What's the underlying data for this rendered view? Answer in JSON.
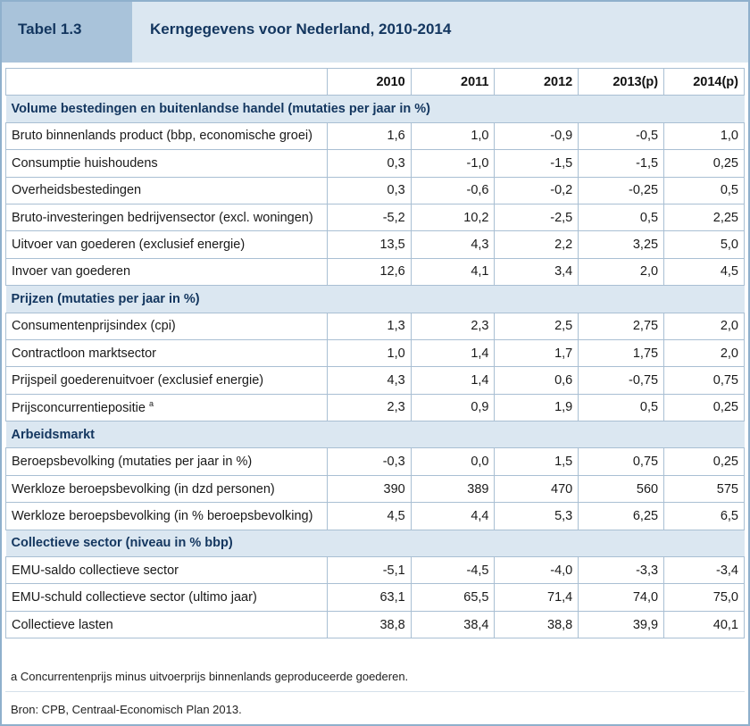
{
  "header": {
    "table_number": "Tabel 1.3",
    "title": "Kerngegevens voor Nederland, 2010-2014"
  },
  "columns": [
    "",
    "2010",
    "2011",
    "2012",
    "2013(p)",
    "2014(p)"
  ],
  "sections": [
    {
      "title": "Volume bestedingen en buitenlandse handel (mutaties per jaar in %)",
      "rows": [
        {
          "label": "Bruto binnenlands product (bbp, economische groei)",
          "values": [
            "1,6",
            "1,0",
            "-0,9",
            "-0,5",
            "1,0"
          ]
        },
        {
          "label": "Consumptie huishoudens",
          "values": [
            "0,3",
            "-1,0",
            "-1,5",
            "-1,5",
            "0,25"
          ]
        },
        {
          "label": "Overheidsbestedingen",
          "values": [
            "0,3",
            "-0,6",
            "-0,2",
            "-0,25",
            "0,5"
          ]
        },
        {
          "label": "Bruto-investeringen bedrijvensector (excl. woningen)",
          "values": [
            "-5,2",
            "10,2",
            "-2,5",
            "0,5",
            "2,25"
          ]
        },
        {
          "label": "Uitvoer van goederen (exclusief energie)",
          "values": [
            "13,5",
            "4,3",
            "2,2",
            "3,25",
            "5,0"
          ]
        },
        {
          "label": "Invoer van goederen",
          "values": [
            "12,6",
            "4,1",
            "3,4",
            "2,0",
            "4,5"
          ]
        }
      ]
    },
    {
      "title": "Prijzen (mutaties per jaar in %)",
      "rows": [
        {
          "label": "Consumentenprijsindex (cpi)",
          "values": [
            "1,3",
            "2,3",
            "2,5",
            "2,75",
            "2,0"
          ]
        },
        {
          "label": "Contractloon marktsector",
          "values": [
            "1,0",
            "1,4",
            "1,7",
            "1,75",
            "2,0"
          ]
        },
        {
          "label": "Prijspeil goederenuitvoer (exclusief energie)",
          "values": [
            "4,3",
            "1,4",
            "0,6",
            "-0,75",
            "0,75"
          ]
        },
        {
          "label": "Prijsconcurrentiepositie",
          "sup": "a",
          "values": [
            "2,3",
            "0,9",
            "1,9",
            "0,5",
            "0,25"
          ]
        }
      ]
    },
    {
      "title": "Arbeidsmarkt",
      "rows": [
        {
          "label": "Beroepsbevolking (mutaties per jaar in %)",
          "values": [
            "-0,3",
            "0,0",
            "1,5",
            "0,75",
            "0,25"
          ]
        },
        {
          "label": "Werkloze beroepsbevolking (in dzd personen)",
          "values": [
            "390",
            "389",
            "470",
            "560",
            "575"
          ]
        },
        {
          "label": "Werkloze beroepsbevolking (in % beroepsbevolking)",
          "values": [
            "4,5",
            "4,4",
            "5,3",
            "6,25",
            "6,5"
          ]
        }
      ]
    },
    {
      "title": "Collectieve sector (niveau in % bbp)",
      "rows": [
        {
          "label": "EMU-saldo collectieve sector",
          "values": [
            "-5,1",
            "-4,5",
            "-4,0",
            "-3,3",
            "-3,4"
          ]
        },
        {
          "label": "EMU-schuld collectieve sector (ultimo jaar)",
          "values": [
            "63,1",
            "65,5",
            "71,4",
            "74,0",
            "75,0"
          ]
        },
        {
          "label": "Collectieve lasten",
          "values": [
            "38,8",
            "38,4",
            "38,8",
            "39,9",
            "40,1"
          ]
        }
      ]
    }
  ],
  "footnote": "a   Concurrentenprijs minus uitvoerprijs binnenlands geproduceerde goederen.",
  "source": "Bron: CPB, Centraal-Economisch Plan 2013.",
  "colors": {
    "header_dark": "#a9c3da",
    "header_light": "#dbe7f1",
    "title_text": "#13365f",
    "border": "#a9bfd3"
  }
}
